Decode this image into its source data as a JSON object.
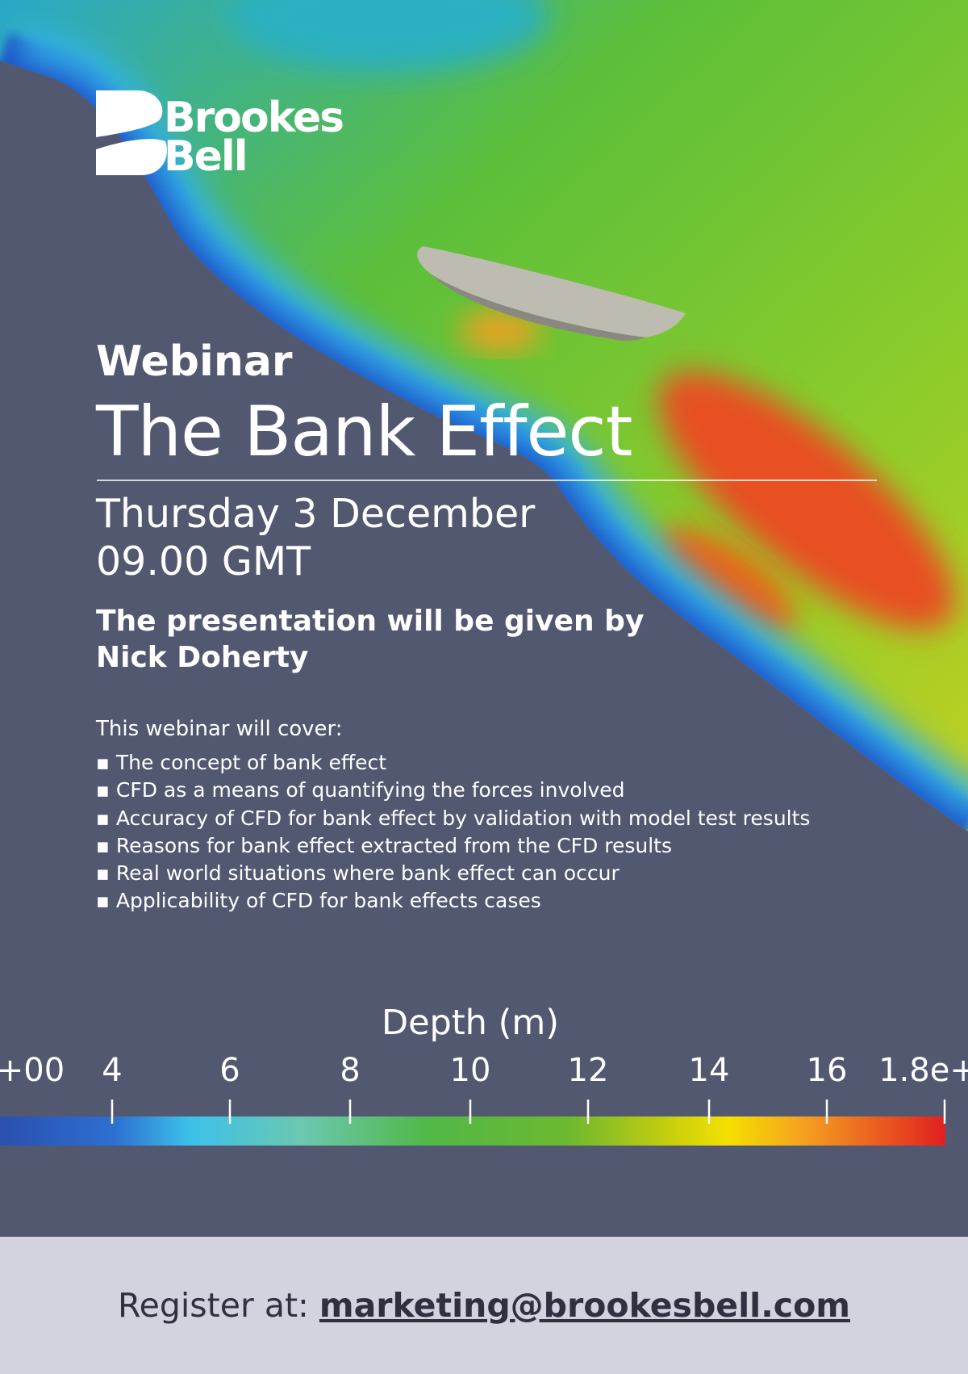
{
  "logo": {
    "line1": "Brookes",
    "line2": "Bell"
  },
  "header": {
    "kicker": "Webinar",
    "title": "The Bank Effect"
  },
  "event": {
    "date": "Thursday 3 December",
    "time": "09.00 GMT"
  },
  "presenter": {
    "line1": "The presentation will be given by",
    "line2": "Nick Doherty"
  },
  "cover": {
    "intro": "This webinar will cover:",
    "items": [
      "The concept of bank effect",
      "CFD as a means of quantifying the forces involved",
      "Accuracy of CFD for bank effect by validation with model test results",
      "Reasons for bank effect extracted from the CFD results",
      "Real world situations where bank effect can occur",
      "Applicability of CFD for bank effects cases"
    ]
  },
  "colorbar": {
    "title": "Depth (m)",
    "labels": [
      "+00",
      "4",
      "6",
      "8",
      "10",
      "12",
      "14",
      "16",
      "1.8e+"
    ]
  },
  "footer": {
    "prefix": "Register at:",
    "email": "marketing@brookesbell.com"
  }
}
